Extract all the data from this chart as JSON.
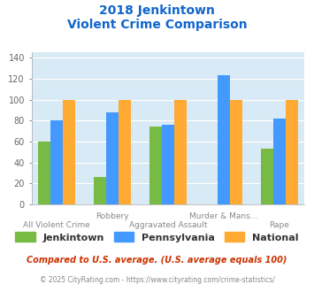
{
  "title_line1": "2018 Jenkintown",
  "title_line2": "Violent Crime Comparison",
  "top_labels": [
    "",
    "Robbery",
    "Murder & Mans...",
    ""
  ],
  "bot_labels": [
    "All Violent Crime",
    "Aggravated Assault",
    "",
    "Rape"
  ],
  "values": {
    "Jenkintown": [
      60,
      26,
      74,
      0,
      53
    ],
    "Pennsylvania": [
      80,
      88,
      76,
      123,
      82
    ],
    "National": [
      100,
      100,
      100,
      100,
      100
    ]
  },
  "xtick_positions": [
    0,
    1,
    2,
    3,
    4
  ],
  "xtick_label_positions": [
    0,
    1.5,
    2.5,
    4
  ],
  "bar_colors": {
    "Jenkintown": "#77bb44",
    "Pennsylvania": "#4499ff",
    "National": "#ffaa33"
  },
  "ylim": [
    0,
    145
  ],
  "yticks": [
    0,
    20,
    40,
    60,
    80,
    100,
    120,
    140
  ],
  "plot_bg": "#d8eaf5",
  "title_color": "#1166cc",
  "label_color": "#888888",
  "footer_text": "Compared to U.S. average. (U.S. average equals 100)",
  "copyright_text": "© 2025 CityRating.com - https://www.cityrating.com/crime-statistics/",
  "footer_color": "#cc3300",
  "copyright_color": "#888888",
  "series_names": [
    "Jenkintown",
    "Pennsylvania",
    "National"
  ]
}
